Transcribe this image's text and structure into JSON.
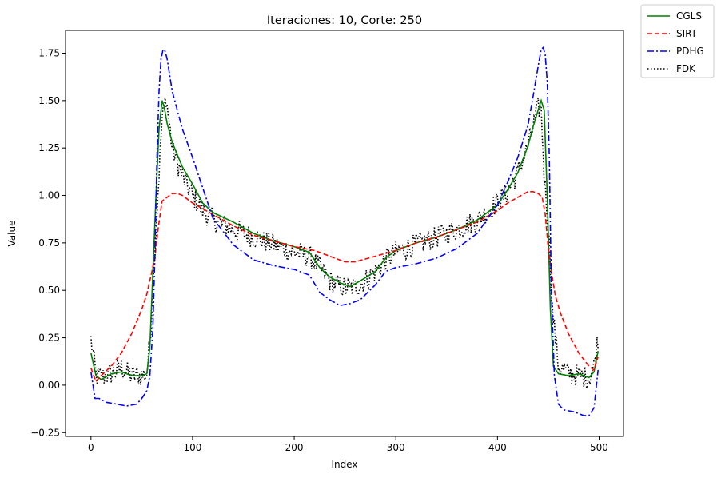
{
  "chart_data": {
    "type": "line",
    "title": "Iteraciones: 10, Corte: 250",
    "xlabel": "Index",
    "ylabel": "Value",
    "xlim": [
      -25,
      524
    ],
    "ylim": [
      -0.27,
      1.87
    ],
    "xticks": [
      0,
      100,
      200,
      300,
      400,
      500
    ],
    "xtick_labels": [
      "0",
      "100",
      "200",
      "300",
      "400",
      "500"
    ],
    "yticks": [
      -0.25,
      0.0,
      0.25,
      0.5,
      0.75,
      1.0,
      1.25,
      1.5,
      1.75
    ],
    "ytick_labels": [
      "−0.25",
      "0.00",
      "0.25",
      "0.50",
      "0.75",
      "1.00",
      "1.25",
      "1.50",
      "1.75"
    ],
    "grid": false,
    "legend_position": "outside-top-right",
    "series": [
      {
        "name": "CGLS",
        "color": "#008000",
        "dash": "solid",
        "x": [
          0,
          5,
          10,
          20,
          30,
          40,
          50,
          55,
          58,
          61,
          64,
          67,
          70,
          72,
          75,
          80,
          90,
          100,
          110,
          120,
          140,
          160,
          180,
          200,
          215,
          225,
          235,
          245,
          255,
          265,
          280,
          290,
          300,
          320,
          340,
          360,
          380,
          400,
          410,
          420,
          430,
          435,
          440,
          443,
          446,
          449,
          452,
          455,
          460,
          470,
          480,
          490,
          495,
          499
        ],
        "y": [
          0.17,
          0.05,
          0.03,
          0.06,
          0.07,
          0.05,
          0.05,
          0.06,
          0.2,
          0.6,
          1.0,
          1.35,
          1.5,
          1.47,
          1.38,
          1.28,
          1.15,
          1.06,
          0.96,
          0.91,
          0.86,
          0.8,
          0.76,
          0.73,
          0.7,
          0.62,
          0.57,
          0.54,
          0.52,
          0.55,
          0.6,
          0.67,
          0.71,
          0.75,
          0.78,
          0.82,
          0.87,
          0.95,
          1.03,
          1.12,
          1.26,
          1.36,
          1.45,
          1.5,
          1.45,
          1.0,
          0.4,
          0.1,
          0.06,
          0.05,
          0.06,
          0.04,
          0.07,
          0.18
        ]
      },
      {
        "name": "SIRT",
        "color": "#ff0000",
        "dash": "dashed",
        "x": [
          0,
          5,
          10,
          20,
          30,
          40,
          50,
          55,
          60,
          63,
          66,
          70,
          75,
          80,
          85,
          90,
          100,
          120,
          140,
          160,
          180,
          200,
          220,
          240,
          250,
          260,
          280,
          300,
          320,
          340,
          360,
          380,
          400,
          410,
          420,
          430,
          435,
          440,
          444,
          447,
          450,
          453,
          457,
          462,
          470,
          480,
          490,
          495,
          499
        ],
        "y": [
          0.09,
          0.02,
          0.05,
          0.1,
          0.17,
          0.27,
          0.4,
          0.48,
          0.6,
          0.68,
          0.82,
          0.97,
          0.99,
          1.01,
          1.01,
          1.0,
          0.96,
          0.9,
          0.84,
          0.79,
          0.76,
          0.73,
          0.71,
          0.67,
          0.65,
          0.65,
          0.68,
          0.71,
          0.75,
          0.78,
          0.82,
          0.86,
          0.92,
          0.96,
          0.99,
          1.02,
          1.02,
          1.01,
          0.99,
          0.9,
          0.72,
          0.6,
          0.47,
          0.38,
          0.27,
          0.17,
          0.1,
          0.08,
          0.15
        ]
      },
      {
        "name": "PDHG",
        "color": "#0000ff",
        "dash": "dashdot",
        "x": [
          0,
          4,
          8,
          15,
          25,
          35,
          45,
          50,
          55,
          58,
          61,
          63,
          65,
          67,
          69,
          71,
          73,
          75,
          80,
          90,
          100,
          110,
          120,
          140,
          160,
          180,
          200,
          215,
          225,
          235,
          245,
          255,
          265,
          280,
          290,
          300,
          320,
          340,
          360,
          380,
          400,
          410,
          420,
          430,
          435,
          440,
          443,
          445,
          447,
          449,
          451,
          453,
          456,
          460,
          465,
          475,
          485,
          490,
          495,
          499
        ],
        "y": [
          0.07,
          -0.07,
          -0.07,
          -0.09,
          -0.1,
          -0.11,
          -0.1,
          -0.07,
          -0.03,
          0.05,
          0.3,
          0.7,
          1.2,
          1.55,
          1.72,
          1.77,
          1.76,
          1.72,
          1.55,
          1.35,
          1.2,
          1.04,
          0.88,
          0.74,
          0.66,
          0.63,
          0.61,
          0.58,
          0.49,
          0.45,
          0.42,
          0.43,
          0.45,
          0.53,
          0.6,
          0.62,
          0.64,
          0.67,
          0.72,
          0.8,
          0.95,
          1.07,
          1.2,
          1.37,
          1.52,
          1.68,
          1.77,
          1.78,
          1.74,
          1.6,
          1.2,
          0.5,
          0.05,
          -0.1,
          -0.13,
          -0.14,
          -0.16,
          -0.16,
          -0.12,
          0.08
        ]
      }
    ],
    "noisy_series": {
      "name": "FDK",
      "color": "#000000",
      "dash": "dotted",
      "base_x": [
        0,
        5,
        10,
        20,
        30,
        40,
        50,
        55,
        58,
        62,
        66,
        70,
        74,
        80,
        90,
        100,
        110,
        120,
        140,
        160,
        180,
        200,
        215,
        225,
        235,
        245,
        255,
        265,
        280,
        290,
        300,
        320,
        340,
        360,
        380,
        400,
        410,
        420,
        430,
        435,
        440,
        443,
        446,
        450,
        454,
        460,
        470,
        480,
        490,
        495,
        499
      ],
      "base_y": [
        0.24,
        0.05,
        0.04,
        0.06,
        0.09,
        0.05,
        0.05,
        0.06,
        0.22,
        0.62,
        1.02,
        1.4,
        1.52,
        1.25,
        1.1,
        1.0,
        0.92,
        0.87,
        0.82,
        0.78,
        0.74,
        0.7,
        0.68,
        0.62,
        0.55,
        0.52,
        0.51,
        0.53,
        0.6,
        0.66,
        0.7,
        0.74,
        0.78,
        0.82,
        0.87,
        0.96,
        1.02,
        1.12,
        1.26,
        1.36,
        1.46,
        1.45,
        1.1,
        0.85,
        0.4,
        0.1,
        0.06,
        0.05,
        0.04,
        0.1,
        0.25
      ],
      "noise_amplitude": 0.06
    }
  }
}
